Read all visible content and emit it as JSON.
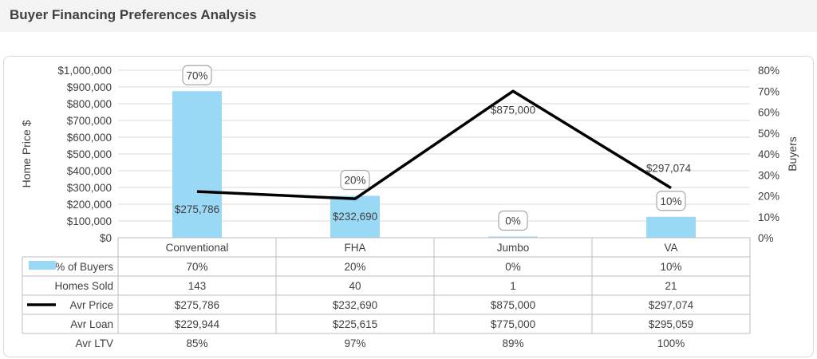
{
  "header": {
    "title": "Buyer Financing Preferences Analysis"
  },
  "chart_data": {
    "type": "bar",
    "categories": [
      "Conventional",
      "FHA",
      "Jumbo",
      "VA"
    ],
    "series": [
      {
        "name": "% of Buyers",
        "type": "bar",
        "axis": "right",
        "values": [
          70,
          20,
          0,
          10
        ],
        "labels": [
          "70%",
          "20%",
          "0%",
          "10%"
        ],
        "color": "#9ad9f5"
      },
      {
        "name": "Avr Price",
        "type": "line",
        "axis": "left",
        "values": [
          275786,
          232690,
          875000,
          297074
        ],
        "labels": [
          "$275,786",
          "$232,690",
          "$875,000",
          "$297,074"
        ],
        "color": "#000000"
      }
    ],
    "ylabel": "Home Price $",
    "y2label": "Buyers",
    "ylim": [
      0,
      1000000
    ],
    "y2lim": [
      0,
      80
    ],
    "yticks": [
      "$0",
      "$100,000",
      "$200,000",
      "$300,000",
      "$400,000",
      "$500,000",
      "$600,000",
      "$700,000",
      "$800,000",
      "$900,000",
      "$1,000,000"
    ],
    "y2ticks": [
      "0%",
      "10%",
      "20%",
      "30%",
      "40%",
      "50%",
      "60%",
      "70%",
      "80%"
    ],
    "grid": true,
    "table": {
      "rows": [
        {
          "name": "% of Buyers",
          "legend": "bar",
          "values": [
            "70%",
            "20%",
            "0%",
            "10%"
          ]
        },
        {
          "name": "Homes Sold",
          "legend": "",
          "values": [
            "143",
            "40",
            "1",
            "21"
          ]
        },
        {
          "name": "Avr Price",
          "legend": "line",
          "values": [
            "$275,786",
            "$232,690",
            "$875,000",
            "$297,074"
          ]
        },
        {
          "name": "Avr Loan",
          "legend": "",
          "values": [
            "$229,944",
            "$225,615",
            "$775,000",
            "$295,059"
          ]
        },
        {
          "name": "Avr LTV",
          "legend": "",
          "values": [
            "85%",
            "97%",
            "89%",
            "100%"
          ]
        }
      ]
    }
  }
}
